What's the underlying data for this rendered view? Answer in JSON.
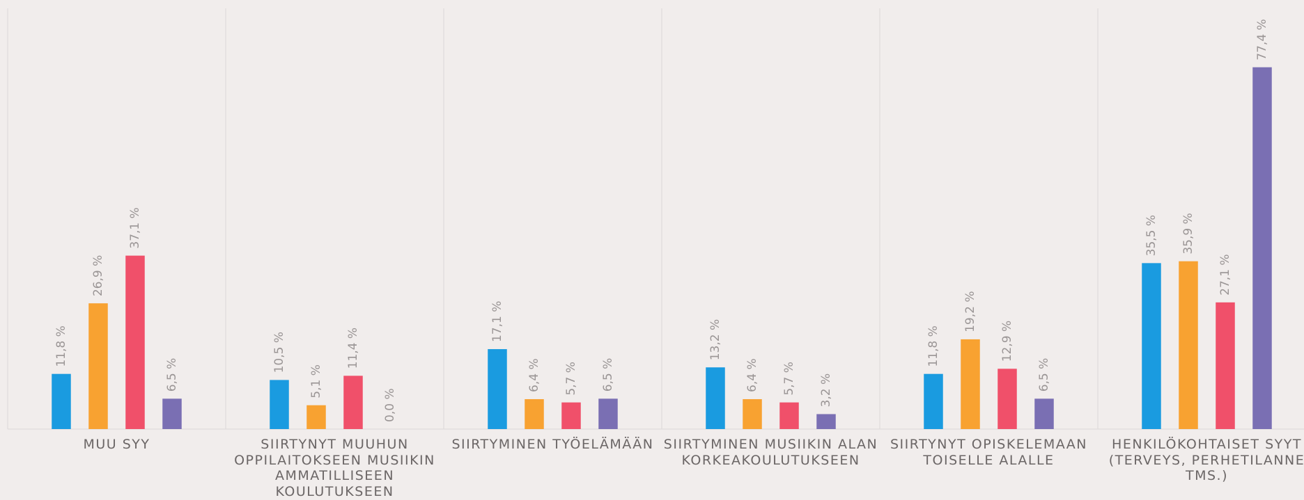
{
  "chart_data": {
    "type": "bar",
    "categories": [
      "MUU SYY",
      "SIIRTYNYT MUUHUN OPPILAITOKSEEN MUSIIKIN AMMATILLISEEN KOULUTUKSEEN",
      "SIIRTYMINEN TYÖELÄMÄÄN",
      "SIIRTYMINEN MUSIIKIN ALAN KORKEAKOULUTUKSEEN",
      "SIIRTYNYT OPISKELEMAAN TOISELLE ALALLE",
      "HENKILÖKOHTAISET SYYT (TERVEYS, PERHETILANNE TMS.)"
    ],
    "series": [
      {
        "color": "#1a9be0",
        "values": [
          11.8,
          10.5,
          17.1,
          13.2,
          11.8,
          35.5
        ],
        "value_labels": [
          "11,8 %",
          "10,5 %",
          "17,1 %",
          "13,2 %",
          "11,8 %",
          "35,5 %"
        ]
      },
      {
        "color": "#f8a231",
        "values": [
          26.9,
          5.1,
          6.4,
          6.4,
          19.2,
          35.9
        ],
        "value_labels": [
          "26,9 %",
          "5,1 %",
          "6,4 %",
          "6,4 %",
          "19,2 %",
          "35,9 %"
        ]
      },
      {
        "color": "#f0506a",
        "values": [
          37.1,
          11.4,
          5.7,
          5.7,
          12.9,
          27.1
        ],
        "value_labels": [
          "37,1 %",
          "11,4 %",
          "5,7 %",
          "5,7 %",
          "12,9 %",
          "27,1 %"
        ]
      },
      {
        "color": "#7a6fb3",
        "values": [
          6.5,
          0.0,
          6.5,
          3.2,
          6.5,
          77.4
        ],
        "value_labels": [
          "6,5 %",
          "0,0 %",
          "6,5 %",
          "3,2 %",
          "6,5 %",
          "77,4 %"
        ]
      }
    ],
    "ylim": [
      0,
      90
    ]
  }
}
